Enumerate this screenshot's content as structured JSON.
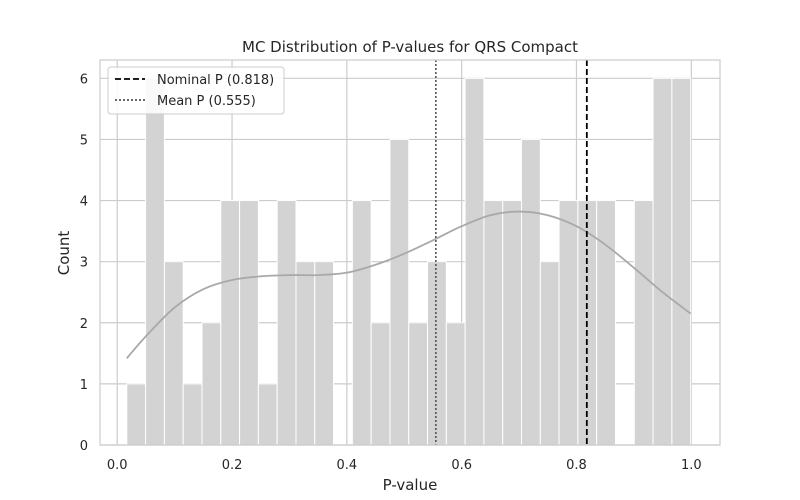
{
  "chart_data": {
    "type": "bar",
    "title": "MC Distribution of P-values for QRS Compact",
    "xlabel": "P-value",
    "ylabel": "Count",
    "xlim": [
      -0.03,
      1.05
    ],
    "ylim": [
      0,
      6.3
    ],
    "xticks": [
      0.0,
      0.2,
      0.4,
      0.6,
      0.8,
      1.0
    ],
    "xtick_labels": [
      "0.0",
      "0.2",
      "0.4",
      "0.6",
      "0.8",
      "1.0"
    ],
    "yticks": [
      0,
      1,
      2,
      3,
      4,
      5,
      6
    ],
    "ytick_labels": [
      "0",
      "1",
      "2",
      "3",
      "4",
      "5",
      "6"
    ],
    "grid": true,
    "legend_position": "top-left",
    "bin_edges": [
      0.0167,
      0.0494,
      0.0822,
      0.1149,
      0.1477,
      0.1804,
      0.2131,
      0.2459,
      0.2786,
      0.3114,
      0.3441,
      0.3768,
      0.4096,
      0.4423,
      0.4751,
      0.5078,
      0.5405,
      0.5733,
      0.606,
      0.6388,
      0.6715,
      0.7042,
      0.737,
      0.7697,
      0.8025,
      0.8352,
      0.8679,
      0.9007,
      0.9334,
      0.9662,
      0.9989
    ],
    "counts": [
      1,
      6,
      3,
      1,
      2,
      4,
      4,
      1,
      4,
      3,
      3,
      0,
      4,
      2,
      5,
      2,
      3,
      2,
      6,
      4,
      4,
      5,
      3,
      4,
      4,
      4,
      0,
      4,
      6,
      6
    ],
    "kde": {
      "x": [
        0.0167,
        0.05,
        0.1,
        0.15,
        0.2,
        0.25,
        0.3,
        0.35,
        0.4,
        0.45,
        0.5,
        0.55,
        0.6,
        0.65,
        0.7,
        0.75,
        0.8,
        0.85,
        0.9,
        0.95,
        0.9989
      ],
      "y": [
        1.42,
        1.78,
        2.25,
        2.55,
        2.7,
        2.76,
        2.78,
        2.78,
        2.82,
        2.95,
        3.13,
        3.35,
        3.58,
        3.76,
        3.82,
        3.76,
        3.58,
        3.28,
        2.9,
        2.5,
        2.15
      ]
    },
    "reference_lines": [
      {
        "name": "Nominal P (0.818)",
        "x": 0.818,
        "style": "dashed",
        "color": "#000000"
      },
      {
        "name": "Mean P (0.555)",
        "x": 0.555,
        "style": "dotted",
        "color": "#555555"
      }
    ],
    "colors": {
      "bar": "#d3d3d3",
      "kde": "#a9a9a9",
      "grid": "#cccccc",
      "spine": "#cccccc"
    }
  }
}
